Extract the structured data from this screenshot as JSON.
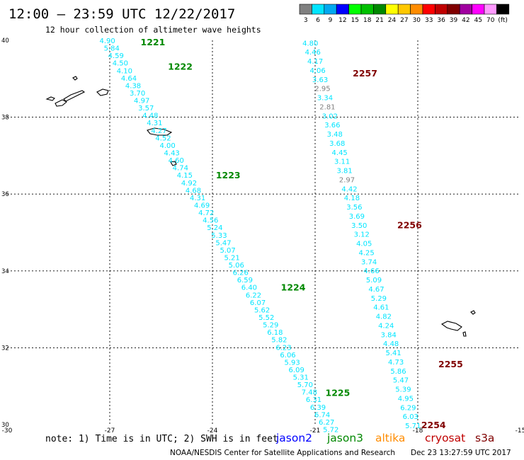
{
  "header": {
    "title": "12:00 — 23:59 UTC 12/22/2017",
    "subtitle": "12 hour collection of altimeter wave heights"
  },
  "legend": {
    "unit": "(ft)",
    "bins": [
      {
        "label": "3",
        "color": "#808080"
      },
      {
        "label": "6",
        "color": "#00e5ff"
      },
      {
        "label": "9",
        "color": "#00a8f0"
      },
      {
        "label": "12",
        "color": "#0000ff"
      },
      {
        "label": "15",
        "color": "#00ff00"
      },
      {
        "label": "18",
        "color": "#00c000"
      },
      {
        "label": "21",
        "color": "#008800"
      },
      {
        "label": "24",
        "color": "#ffff00"
      },
      {
        "label": "27",
        "color": "#ffc800"
      },
      {
        "label": "30",
        "color": "#ff8c00"
      },
      {
        "label": "33",
        "color": "#ff0000"
      },
      {
        "label": "36",
        "color": "#c00000"
      },
      {
        "label": "39",
        "color": "#800000"
      },
      {
        "label": "42",
        "color": "#a000a0"
      },
      {
        "label": "45",
        "color": "#ff00ff"
      },
      {
        "label": "70",
        "color": "#ff99ff"
      },
      {
        "label": "",
        "color": "#000000"
      }
    ]
  },
  "chart_data": {
    "type": "scatter",
    "xlim": [
      -30,
      -15
    ],
    "ylim": [
      30,
      40
    ],
    "x_ticks": [
      -30,
      -27,
      -24,
      -21,
      -18,
      -15
    ],
    "y_ticks": [
      30,
      32,
      34,
      36,
      38,
      40
    ],
    "gridlines": {
      "x": [
        -27,
        -24,
        -21,
        -18
      ],
      "y": [
        32,
        34,
        36,
        38
      ]
    },
    "satellites": [
      {
        "name": "jason2",
        "color": "#0000ff"
      },
      {
        "name": "jason3",
        "color": "#008800"
      },
      {
        "name": "altika",
        "color": "#ff8c00"
      },
      {
        "name": "cryosat",
        "color": "#c00000"
      },
      {
        "name": "s3a",
        "color": "#800000"
      }
    ],
    "tracks": [
      {
        "satellite": "jason3",
        "label_color": "#008800",
        "time_labels": [
          {
            "text": "1221",
            "x": -26.1,
            "y": 39.96
          },
          {
            "text": "1222",
            "x": -25.3,
            "y": 39.33
          },
          {
            "text": "1223",
            "x": -23.9,
            "y": 36.5
          },
          {
            "text": "1224",
            "x": -22.0,
            "y": 33.58
          },
          {
            "text": "1225",
            "x": -20.7,
            "y": 30.84
          }
        ],
        "start": [
          -27.3,
          40.0
        ],
        "end": [
          -20.77,
          29.88
        ],
        "points": [
          {
            "v": "4.90",
            "c": "cyan"
          },
          {
            "v": "5.84",
            "c": "cyan"
          },
          {
            "v": "4.59",
            "c": "cyan"
          },
          {
            "v": "4.50",
            "c": "cyan"
          },
          {
            "v": "4.10",
            "c": "cyan"
          },
          {
            "v": "4.64",
            "c": "cyan"
          },
          {
            "v": "4.38",
            "c": "cyan"
          },
          {
            "v": "3.70",
            "c": "cyan"
          },
          {
            "v": "4.97",
            "c": "cyan"
          },
          {
            "v": "3.57",
            "c": "cyan"
          },
          {
            "v": "4.48",
            "c": "cyan"
          },
          {
            "v": "4.31",
            "c": "cyan"
          },
          {
            "v": "4.27",
            "c": "cyan"
          },
          {
            "v": "4.52",
            "c": "cyan"
          },
          {
            "v": "4.00",
            "c": "cyan"
          },
          {
            "v": "4.43",
            "c": "cyan"
          },
          {
            "v": "4.60",
            "c": "cyan"
          },
          {
            "v": "4.74",
            "c": "cyan"
          },
          {
            "v": "4.15",
            "c": "cyan"
          },
          {
            "v": "4.92",
            "c": "cyan"
          },
          {
            "v": "4.68",
            "c": "cyan"
          },
          {
            "v": "4.31",
            "c": "cyan"
          },
          {
            "v": "4.69",
            "c": "cyan"
          },
          {
            "v": "4.72",
            "c": "cyan"
          },
          {
            "v": "4.56",
            "c": "cyan"
          },
          {
            "v": "5.24",
            "c": "cyan"
          },
          {
            "v": "5.33",
            "c": "cyan"
          },
          {
            "v": "5.47",
            "c": "cyan"
          },
          {
            "v": "5.07",
            "c": "cyan"
          },
          {
            "v": "5.21",
            "c": "cyan"
          },
          {
            "v": "5.06",
            "c": "cyan"
          },
          {
            "v": "6.26",
            "c": "cyan"
          },
          {
            "v": "6.59",
            "c": "cyan"
          },
          {
            "v": "6.40",
            "c": "cyan"
          },
          {
            "v": "6.22",
            "c": "cyan"
          },
          {
            "v": "6.07",
            "c": "cyan"
          },
          {
            "v": "5.62",
            "c": "cyan"
          },
          {
            "v": "5.52",
            "c": "cyan"
          },
          {
            "v": "5.29",
            "c": "cyan"
          },
          {
            "v": "6.18",
            "c": "cyan"
          },
          {
            "v": "5.82",
            "c": "cyan"
          },
          {
            "v": "6.23",
            "c": "cyan"
          },
          {
            "v": "6.06",
            "c": "cyan"
          },
          {
            "v": "5.93",
            "c": "cyan"
          },
          {
            "v": "6.09",
            "c": "cyan"
          },
          {
            "v": "5.31",
            "c": "cyan"
          },
          {
            "v": "5.70",
            "c": "cyan"
          },
          {
            "v": "7.48",
            "c": "cyan"
          },
          {
            "v": "6.31",
            "c": "cyan"
          },
          {
            "v": "6.39",
            "c": "cyan"
          },
          {
            "v": "6.74",
            "c": "cyan"
          },
          {
            "v": "6.27",
            "c": "cyan"
          },
          {
            "v": "5.72",
            "c": "cyan"
          }
        ]
      },
      {
        "satellite": "s3a",
        "label_color": "#800000",
        "time_labels": [
          {
            "text": "2257",
            "x": -19.9,
            "y": 39.15
          },
          {
            "text": "2256",
            "x": -18.6,
            "y": 35.2
          },
          {
            "text": "2255",
            "x": -17.4,
            "y": 31.58
          },
          {
            "text": "2254",
            "x": -17.9,
            "y": 30.0
          }
        ],
        "start": [
          -21.37,
          39.94
        ],
        "end": [
          -18.37,
          29.98
        ],
        "points": [
          {
            "v": "4.80",
            "c": "cyan"
          },
          {
            "v": "4.46",
            "c": "cyan"
          },
          {
            "v": "4.17",
            "c": "cyan"
          },
          {
            "v": "4.06",
            "c": "cyan"
          },
          {
            "v": "3.63",
            "c": "cyan"
          },
          {
            "v": "2.95",
            "c": "gray"
          },
          {
            "v": "3.34",
            "c": "cyan"
          },
          {
            "v": "2.81",
            "c": "gray"
          },
          {
            "v": "3.02",
            "c": "cyan"
          },
          {
            "v": "3.66",
            "c": "cyan"
          },
          {
            "v": "3.48",
            "c": "cyan"
          },
          {
            "v": "3.68",
            "c": "cyan"
          },
          {
            "v": "4.45",
            "c": "cyan"
          },
          {
            "v": "3.11",
            "c": "cyan"
          },
          {
            "v": "3.81",
            "c": "cyan"
          },
          {
            "v": "2.97",
            "c": "gray"
          },
          {
            "v": "4.42",
            "c": "cyan"
          },
          {
            "v": "4.18",
            "c": "cyan"
          },
          {
            "v": "3.56",
            "c": "cyan"
          },
          {
            "v": "3.69",
            "c": "cyan"
          },
          {
            "v": "3.50",
            "c": "cyan"
          },
          {
            "v": "3.12",
            "c": "cyan"
          },
          {
            "v": "4.05",
            "c": "cyan"
          },
          {
            "v": "4.25",
            "c": "cyan"
          },
          {
            "v": "3.74",
            "c": "cyan"
          },
          {
            "v": "4.66",
            "c": "cyan"
          },
          {
            "v": "5.09",
            "c": "cyan"
          },
          {
            "v": "4.67",
            "c": "cyan"
          },
          {
            "v": "5.29",
            "c": "cyan"
          },
          {
            "v": "4.61",
            "c": "cyan"
          },
          {
            "v": "4.82",
            "c": "cyan"
          },
          {
            "v": "4.24",
            "c": "cyan"
          },
          {
            "v": "3.84",
            "c": "cyan"
          },
          {
            "v": "4.48",
            "c": "cyan"
          },
          {
            "v": "5.41",
            "c": "cyan"
          },
          {
            "v": "4.73",
            "c": "cyan"
          },
          {
            "v": "5.86",
            "c": "cyan"
          },
          {
            "v": "5.47",
            "c": "cyan"
          },
          {
            "v": "5.39",
            "c": "cyan"
          },
          {
            "v": "4.95",
            "c": "cyan"
          },
          {
            "v": "6.29",
            "c": "cyan"
          },
          {
            "v": "6.03",
            "c": "cyan"
          },
          {
            "v": "5.71",
            "c": "cyan"
          }
        ]
      }
    ],
    "point_colors": {
      "cyan": "#00e5ff",
      "gray": "#808080"
    }
  },
  "footer": {
    "note": "note:  1) Time is in UTC;  2) SWH is in feet",
    "credit": "NOAA/NESDIS Center for Satellite Applications and Research",
    "timestamp": "Dec 23 13:27:59 UTC 2017"
  }
}
